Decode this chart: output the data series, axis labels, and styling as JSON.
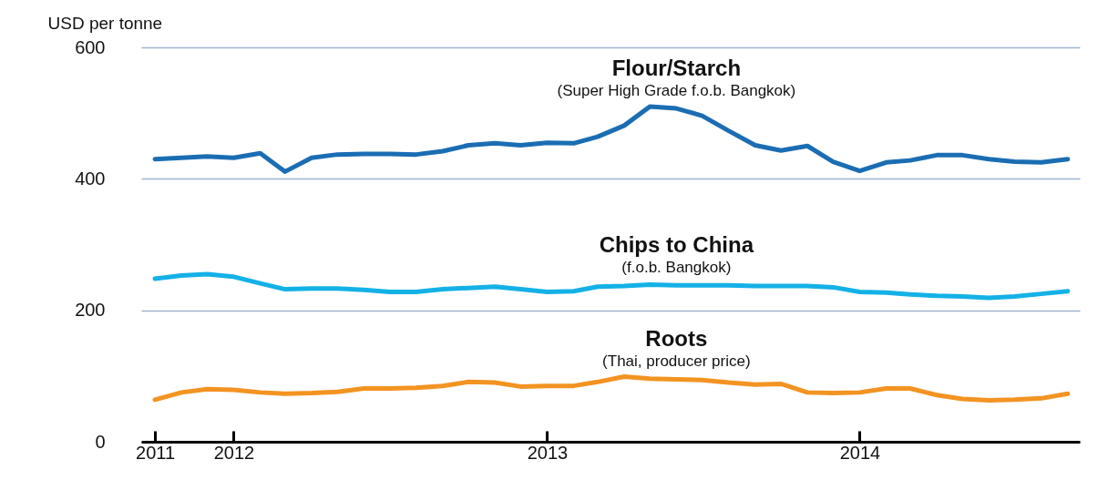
{
  "chart_data": {
    "type": "line",
    "ylabel": "USD per tonne",
    "x": [
      "2011-10",
      "2011-11",
      "2011-12",
      "2012-01",
      "2012-02",
      "2012-03",
      "2012-04",
      "2012-05",
      "2012-06",
      "2012-07",
      "2012-08",
      "2012-09",
      "2012-10",
      "2012-11",
      "2012-12",
      "2013-01",
      "2013-02",
      "2013-03",
      "2013-04",
      "2013-05",
      "2013-06",
      "2013-07",
      "2013-08",
      "2013-09",
      "2013-10",
      "2013-11",
      "2013-12",
      "2014-01",
      "2014-02",
      "2014-03",
      "2014-04",
      "2014-05",
      "2014-06",
      "2014-07",
      "2014-08",
      "2014-09"
    ],
    "series": [
      {
        "name": "Flour/Starch",
        "color": "#1b6db3",
        "values": [
          430,
          432,
          434,
          432,
          439,
          411,
          432,
          437,
          438,
          438,
          437,
          442,
          451,
          454,
          451,
          455,
          454,
          464,
          481,
          510,
          507,
          496,
          473,
          451,
          443,
          450,
          426,
          412,
          425,
          428,
          436,
          436,
          430,
          426,
          425,
          430
        ]
      },
      {
        "name": "Chips to China",
        "color": "#14b1e7",
        "values": [
          248,
          253,
          255,
          251,
          241,
          232,
          233,
          233,
          231,
          228,
          228,
          232,
          234,
          236,
          232,
          228,
          229,
          236,
          237,
          239,
          238,
          238,
          238,
          237,
          237,
          237,
          235,
          228,
          227,
          224,
          222,
          221,
          219,
          221,
          225,
          229
        ]
      },
      {
        "name": "Roots",
        "color": "#f39321",
        "values": [
          64,
          75,
          80,
          79,
          75,
          73,
          74,
          76,
          81,
          81,
          82,
          85,
          91,
          90,
          84,
          85,
          85,
          91,
          99,
          96,
          95,
          94,
          90,
          87,
          88,
          75,
          74,
          75,
          81,
          81,
          71,
          65,
          63,
          64,
          66,
          73
        ]
      }
    ],
    "annotations": [
      "(Super High Grade f.o.b. Bangkok)",
      "(f.o.b. Bangkok)",
      "(Thai, producer price)"
    ],
    "xlim": [
      "2011-09-15",
      "2014-09-15"
    ],
    "xticks": [
      {
        "value": "2011-10",
        "label": "2011"
      },
      {
        "value": "2012-01",
        "label": "2012"
      },
      {
        "value": "2013-01",
        "label": "2013"
      },
      {
        "value": "2014-01",
        "label": "2014"
      }
    ],
    "ylim": [
      0,
      600
    ],
    "yticks": [
      0,
      200,
      400,
      600
    ],
    "grid": "y",
    "line_style": "solid",
    "marker": "none"
  }
}
